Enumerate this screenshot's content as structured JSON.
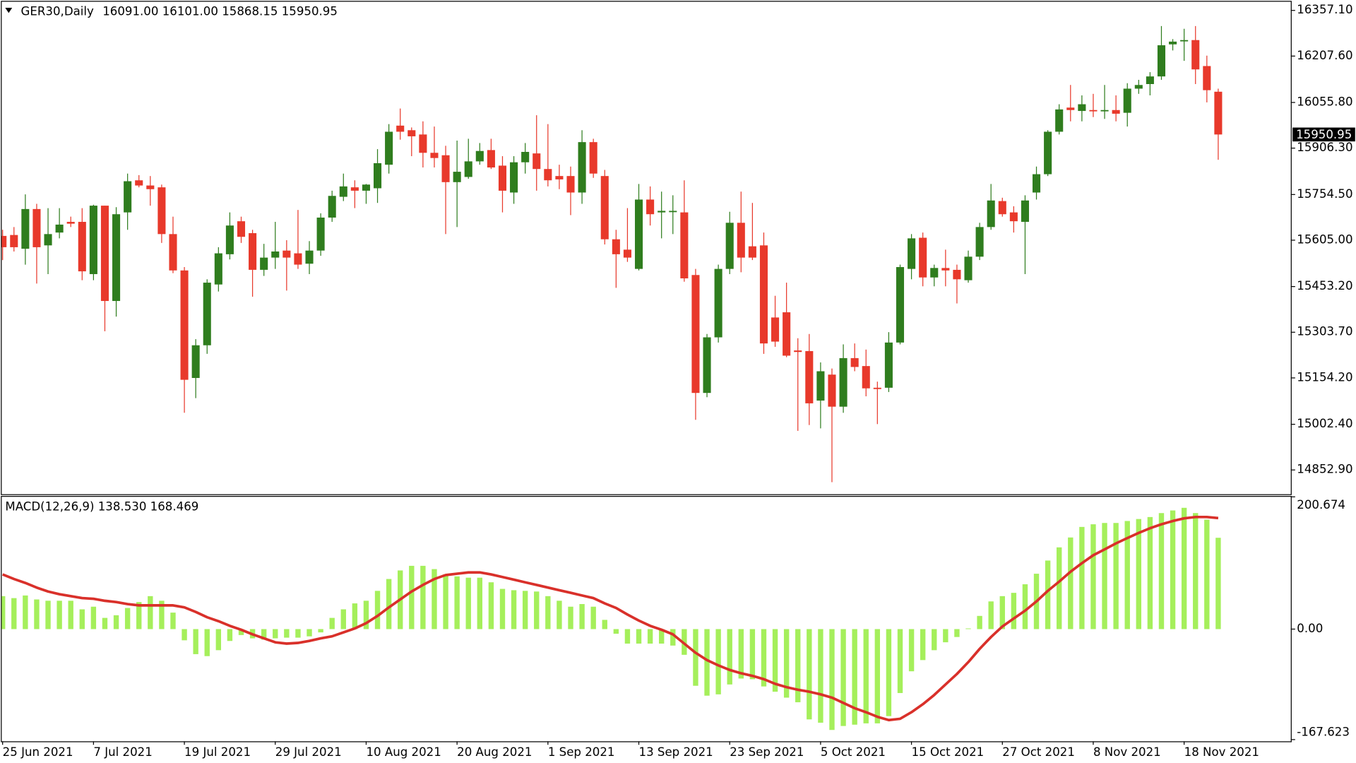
{
  "chart_data": [
    {
      "type": "candlestick",
      "title": "GER30,Daily",
      "subtitle": "16091.00 16101.00 15868.15 15950.95",
      "categories": [
        "25 Jun 2021",
        null,
        null,
        null,
        null,
        null,
        null,
        null,
        "7 Jul 2021",
        null,
        null,
        null,
        null,
        null,
        null,
        null,
        "19 Jul 2021",
        null,
        null,
        null,
        null,
        null,
        null,
        null,
        "29 Jul 2021",
        null,
        null,
        null,
        null,
        null,
        null,
        null,
        "10 Aug 2021",
        null,
        null,
        null,
        null,
        null,
        null,
        null,
        "20 Aug 2021",
        null,
        null,
        null,
        null,
        null,
        null,
        null,
        "1 Sep 2021",
        null,
        null,
        null,
        null,
        null,
        null,
        null,
        "13 Sep 2021",
        null,
        null,
        null,
        null,
        null,
        null,
        null,
        "23 Sep 2021",
        null,
        null,
        null,
        null,
        null,
        null,
        null,
        "5 Oct 2021",
        null,
        null,
        null,
        null,
        null,
        null,
        null,
        "15 Oct 2021",
        null,
        null,
        null,
        null,
        null,
        null,
        null,
        "27 Oct 2021",
        null,
        null,
        null,
        null,
        null,
        null,
        null,
        "8 Nov 2021",
        null,
        null,
        null,
        null,
        null,
        null,
        null,
        "18 Nov 2021",
        null,
        null,
        null
      ],
      "open": [
        15619,
        15622,
        15577,
        15707,
        15588,
        15630,
        15665,
        15665,
        15494,
        15718,
        15406,
        15696,
        15801,
        15784,
        15778,
        15625,
        15506,
        15154,
        15261,
        15460,
        15559,
        15667,
        15628,
        15508,
        15548,
        15571,
        15562,
        15528,
        15571,
        15679,
        15747,
        15778,
        15767,
        15775,
        15852,
        15980,
        15965,
        15951,
        15891,
        15883,
        15795,
        15812,
        15863,
        15900,
        15849,
        15761,
        15860,
        15889,
        15838,
        15815,
        15815,
        15761,
        15926,
        15815,
        15608,
        15574,
        15511,
        15738,
        15696,
        15698,
        15696,
        15491,
        15105,
        15287,
        15511,
        15662,
        15585,
        15588,
        15352,
        15369,
        15244,
        15242,
        15080,
        15165,
        15060,
        15219,
        15193,
        15122,
        15122,
        15270,
        15511,
        15613,
        15483,
        15514,
        15508,
        15474,
        15551,
        15648,
        15733,
        15696,
        15665,
        15761,
        15821,
        15960,
        16039,
        16028,
        16031,
        16028,
        16031,
        16022,
        16101,
        16116,
        16141,
        16246,
        16258,
        16260,
        16175,
        16091
      ],
      "high": [
        15639,
        15648,
        15755,
        15724,
        15710,
        15710,
        15682,
        15710,
        15721,
        15718,
        15713,
        15823,
        15818,
        15815,
        15787,
        15682,
        15517,
        15281,
        15477,
        15582,
        15696,
        15682,
        15639,
        15593,
        15665,
        15605,
        15704,
        15602,
        15693,
        15767,
        15823,
        15801,
        15789,
        15903,
        15985,
        16036,
        15974,
        15994,
        15977,
        15914,
        15931,
        15937,
        15923,
        15937,
        15880,
        15880,
        15923,
        16014,
        15985,
        15852,
        15846,
        15965,
        15937,
        15835,
        15639,
        15710,
        15789,
        15781,
        15764,
        15752,
        15801,
        15511,
        15298,
        15525,
        15698,
        15764,
        15727,
        15630,
        15423,
        15466,
        15284,
        15298,
        15205,
        15185,
        15264,
        15267,
        15247,
        15142,
        15304,
        15525,
        15625,
        15630,
        15525,
        15574,
        15525,
        15571,
        15662,
        15789,
        15744,
        15716,
        15752,
        15846,
        15965,
        16050,
        16113,
        16079,
        16084,
        16113,
        16079,
        16119,
        16130,
        16155,
        16306,
        16263,
        16297,
        16306,
        16209,
        16101
      ],
      "low": [
        15540,
        15568,
        15525,
        15463,
        15494,
        15611,
        15648,
        15474,
        15474,
        15307,
        15355,
        15639,
        15778,
        15718,
        15596,
        15497,
        15040,
        15088,
        15233,
        15437,
        15542,
        15596,
        15420,
        15488,
        15511,
        15440,
        15511,
        15494,
        15554,
        15665,
        15733,
        15710,
        15724,
        15727,
        15823,
        15934,
        15880,
        15843,
        15843,
        15625,
        15648,
        15806,
        15852,
        15838,
        15696,
        15724,
        15823,
        15767,
        15781,
        15772,
        15687,
        15724,
        15809,
        15591,
        15449,
        15534,
        15506,
        15653,
        15611,
        15625,
        15469,
        15017,
        15091,
        15270,
        15494,
        15500,
        15540,
        15233,
        15256,
        15222,
        14981,
        15000,
        14989,
        14813,
        15040,
        15176,
        15094,
        15003,
        15108,
        15264,
        15477,
        15454,
        15454,
        15454,
        15398,
        15466,
        15540,
        15639,
        15682,
        15630,
        15494,
        15738,
        15815,
        15951,
        15994,
        15994,
        16008,
        16002,
        15994,
        15977,
        16084,
        16079,
        16130,
        16226,
        16192,
        16116,
        16056,
        15868.15
      ],
      "close": [
        15582,
        15582,
        15707,
        15582,
        15625,
        15656,
        15659,
        15503,
        15718,
        15406,
        15690,
        15798,
        15784,
        15772,
        15625,
        15506,
        15148,
        15261,
        15466,
        15562,
        15653,
        15616,
        15508,
        15548,
        15568,
        15548,
        15525,
        15571,
        15679,
        15750,
        15781,
        15767,
        15787,
        15857,
        15960,
        15960,
        15945,
        15891,
        15874,
        15795,
        15829,
        15863,
        15897,
        15843,
        15767,
        15860,
        15894,
        15838,
        15801,
        15804,
        15761,
        15926,
        15823,
        15608,
        15559,
        15548,
        15738,
        15690,
        15701,
        15701,
        15480,
        15105,
        15287,
        15511,
        15662,
        15548,
        15548,
        15267,
        15273,
        15227,
        15239,
        15071,
        15176,
        15060,
        15219,
        15190,
        15120,
        15120,
        15270,
        15517,
        15611,
        15483,
        15514,
        15506,
        15477,
        15551,
        15648,
        15735,
        15690,
        15667,
        15735,
        15821,
        15960,
        16033,
        16031,
        16050,
        16028,
        16031,
        16019,
        16101,
        16113,
        16141,
        16243,
        16255,
        16260,
        16164,
        16096,
        15950.95
      ],
      "up_color": "#2f7d1e",
      "down_color": "#e8392b",
      "ylim": [
        14773.5,
        16385.5
      ],
      "yticks": [
        {
          "value": 16357.1,
          "label": "16357.10"
        },
        {
          "value": 16207.6,
          "label": "16207.60"
        },
        {
          "value": 16055.8,
          "label": "16055.80"
        },
        {
          "value": 15906.3,
          "label": "15906.30"
        },
        {
          "value": 15754.5,
          "label": "15754.50"
        },
        {
          "value": 15605,
          "label": "15605.00"
        },
        {
          "value": 15453.2,
          "label": "15453.20"
        },
        {
          "value": 15303.7,
          "label": "15303.70"
        },
        {
          "value": 15154.2,
          "label": "15154.20"
        },
        {
          "value": 15002.4,
          "label": "15002.40"
        },
        {
          "value": 14852.9,
          "label": "14852.90"
        }
      ]
    },
    {
      "type": "macd",
      "title": "MACD(12,26,9) 138.530 168.469",
      "histogram": {
        "color": "#a5ef5b",
        "values": [
          50,
          47,
          51,
          45,
          43,
          43,
          43,
          30,
          34,
          17,
          21,
          32,
          41,
          50,
          43,
          25,
          -17,
          -38,
          -41,
          -32,
          -18,
          -9,
          -14,
          -16,
          -14,
          -13,
          -13,
          -11,
          -5,
          17,
          30,
          39,
          43,
          58,
          76,
          89,
          96,
          96,
          91,
          83,
          80,
          78,
          78,
          71,
          61,
          59,
          58,
          57,
          50,
          43,
          34,
          38,
          34,
          14,
          -7,
          -22,
          -22,
          -22,
          -22,
          -25,
          -39,
          -86,
          -101,
          -99,
          -84,
          -75,
          -76,
          -87,
          -95,
          -104,
          -111,
          -137,
          -142,
          -153,
          -147,
          -145,
          -143,
          -143,
          -132,
          -97,
          -64,
          -47,
          -32,
          -20,
          -12,
          1,
          20,
          42,
          50,
          55,
          68,
          84,
          104,
          124,
          139,
          155,
          159,
          161,
          161,
          164,
          167,
          170,
          176,
          180,
          184,
          176,
          166,
          138.53
        ]
      },
      "signal": {
        "color": "#d9302a",
        "values": [
          83,
          76,
          70,
          63,
          57,
          53,
          50,
          47,
          46,
          43,
          41,
          38,
          36,
          36,
          36,
          36,
          33,
          26,
          18,
          12,
          5,
          -1,
          -8,
          -14,
          -20,
          -22,
          -21,
          -18,
          -14,
          -11,
          -5,
          1,
          9,
          20,
          33,
          45,
          57,
          67,
          76,
          82,
          84,
          86,
          86,
          83,
          79,
          75,
          71,
          67,
          63,
          59,
          55,
          51,
          47,
          39,
          32,
          22,
          13,
          5,
          -1,
          -8,
          -22,
          -36,
          -47,
          -55,
          -62,
          -67,
          -71,
          -76,
          -83,
          -88,
          -92,
          -95,
          -99,
          -104,
          -112,
          -120,
          -126,
          -133,
          -138,
          -136,
          -126,
          -114,
          -100,
          -84,
          -68,
          -50,
          -30,
          -12,
          4,
          16,
          28,
          42,
          58,
          72,
          87,
          100,
          112,
          121,
          130,
          138,
          146,
          153,
          159,
          164,
          168,
          170,
          170,
          168.469
        ]
      },
      "ylim": [
        -167.623,
        200.674
      ],
      "yticks": [
        200.674,
        {
          "value": 0,
          "label": "0.00"
        },
        -167.623
      ]
    }
  ]
}
